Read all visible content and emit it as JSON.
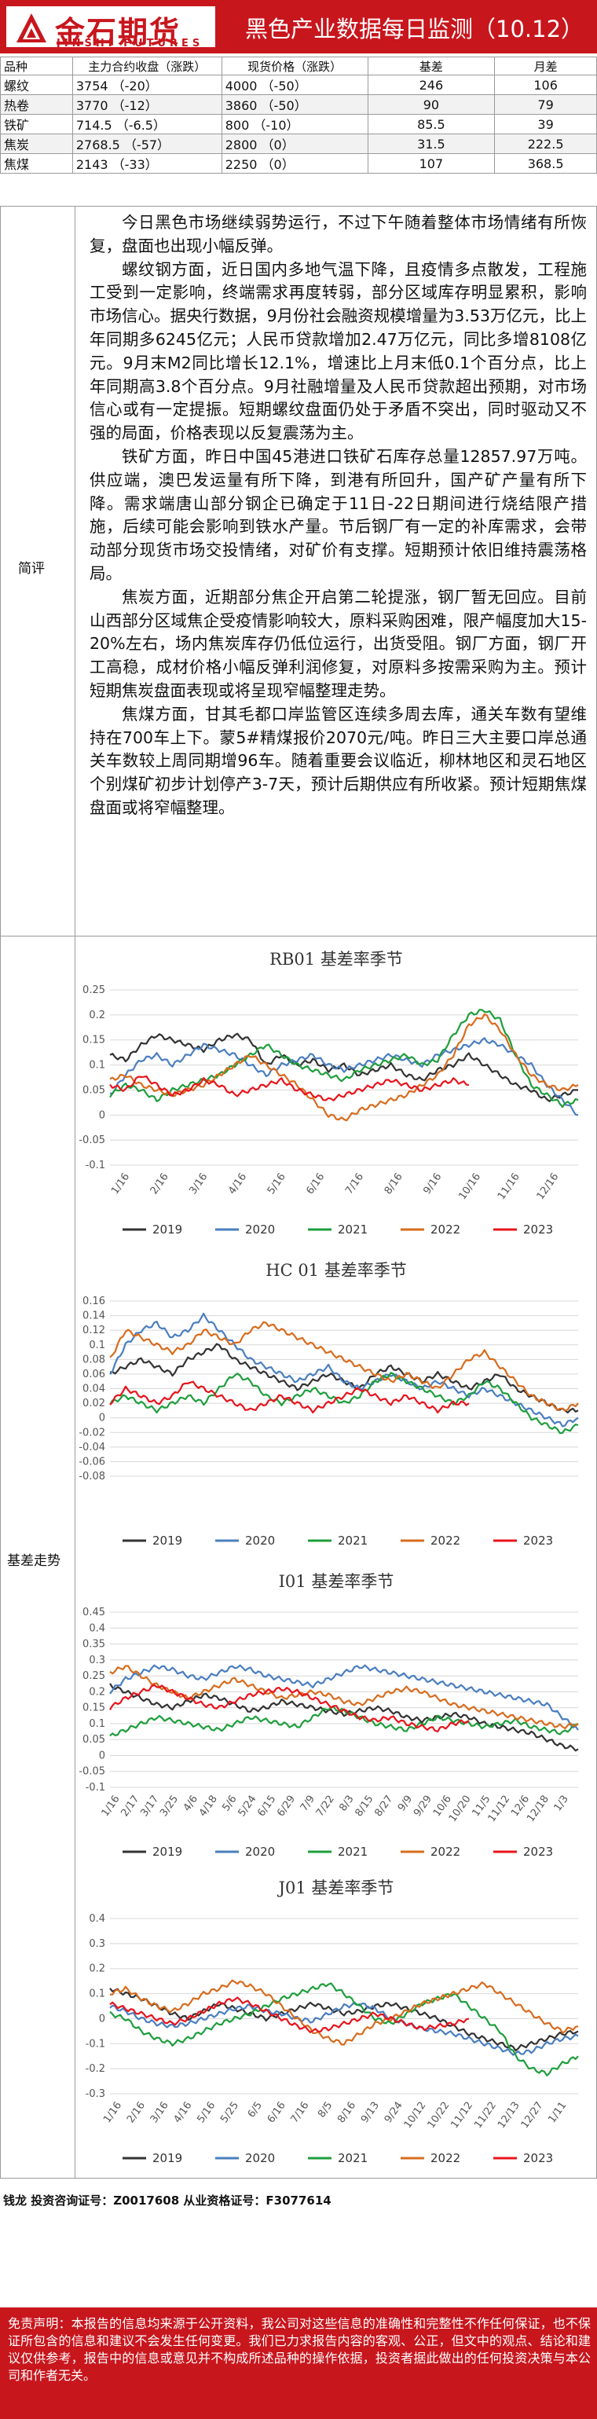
{
  "header": {
    "logo_cn": "金石期货",
    "logo_en": "JINSHI FUTURES",
    "title": "黑色产业数据每日监测（10.12）"
  },
  "table": {
    "columns": [
      "品种",
      "主力合约收盘（涨跌）",
      "现货价格（涨跌）",
      "基差",
      "月差"
    ],
    "rows": [
      {
        "name": "螺纹",
        "futures": "3754 （-20）",
        "spot": "4000 （-50）",
        "basis": "246",
        "spread": "106"
      },
      {
        "name": "热卷",
        "futures": "3770 （-12）",
        "spot": "3860 （-50）",
        "basis": "90",
        "spread": "79"
      },
      {
        "name": "铁矿",
        "futures": "714.5 （-6.5）",
        "spot": "800 （-10）",
        "basis": "85.5",
        "spread": "39"
      },
      {
        "name": "焦炭",
        "futures": "2768.5 （-57）",
        "spot": "2800 （0）",
        "basis": "31.5",
        "spread": "222.5"
      },
      {
        "name": "焦煤",
        "futures": "2143 （-33）",
        "spot": "2250 （0）",
        "basis": "107",
        "spread": "368.5"
      }
    ]
  },
  "comment": {
    "label": "简评",
    "paragraphs": [
      "今日黑色市场继续弱势运行，不过下午随着整体市场情绪有所恢复，盘面也出现小幅反弹。",
      "螺纹钢方面，近日国内多地气温下降，且疫情多点散发，工程施工受到一定影响，终端需求再度转弱，部分区域库存明显累积，影响市场信心。据央行数据，9月份社会融资规模增量为3.53万亿元，比上年同期多6245亿元；人民币贷款增加2.47万亿元，同比多增8108亿元。9月末M2同比增长12.1%，增速比上月末低0.1个百分点，比上年同期高3.8个百分点。9月社融增量及人民币贷款超出预期，对市场信心或有一定提振。短期螺纹盘面仍处于矛盾不突出，同时驱动又不强的局面，价格表现以反复震荡为主。",
      "铁矿方面，昨日中国45港进口铁矿石库存总量12857.97万吨。供应端，澳巴发运量有所下降，到港有所回升，国产矿产量有所下降。需求端唐山部分钢企已确定于11日-22日期间进行烧结限产措施，后续可能会影响到铁水产量。节后钢厂有一定的补库需求，会带动部分现货市场交投情绪，对矿价有支撑。短期预计依旧维持震荡格局。",
      "焦炭方面，近期部分焦企开启第二轮提涨，钢厂暂无回应。目前山西部分区域焦企受疫情影响较大，原料采购困难，限产幅度加大15-20%左右，场内焦炭库存仍低位运行，出货受阻。钢厂方面，钢厂开工高稳，成材价格小幅反弹利润修复，对原料多按需采购为主。预计短期焦炭盘面表现或将呈现窄幅整理走势。",
      "焦煤方面，甘其毛都口岸监管区连续多周去库，通关车数有望维持在700车上下。蒙5#精煤报价2070元/吨。昨日三大主要口岸总通关车数较上周同期增96车。随着重要会议临近，柳林地区和灵石地区个别煤矿初步计划停产3-7天，预计后期供应有所收紧。预计短期焦煤盘面或将窄幅整理。"
    ]
  },
  "basis": {
    "label": "基差走势",
    "colors": {
      "2019": "#333333",
      "2020": "#4a7ebf",
      "2021": "#1e9e3c",
      "2022": "#d76c1e",
      "2023": "#e8141c"
    }
  },
  "chart_data": [
    {
      "type": "line",
      "title": "RB01 基差率季节",
      "ylim": [
        -0.1,
        0.25
      ],
      "yticks": [
        "0.25",
        "0.2",
        "0.15",
        "0.1",
        "0.05",
        "0",
        "-0.05",
        "-0.1"
      ],
      "xticks": [
        "1/16",
        "2/16",
        "3/16",
        "4/16",
        "5/16",
        "6/16",
        "7/16",
        "8/16",
        "9/16",
        "10/16",
        "11/16",
        "12/16"
      ],
      "series": [
        {
          "name": "2019",
          "values": [
            0.12,
            0.11,
            0.14,
            0.16,
            0.15,
            0.14,
            0.13,
            0.15,
            0.16,
            0.15,
            0.1,
            0.12,
            0.1,
            0.11,
            0.09,
            0.1,
            0.08,
            0.09,
            0.1,
            0.08,
            0.07,
            0.09,
            0.1,
            0.12,
            0.1,
            0.08,
            0.06,
            0.05,
            0.03,
            0.04,
            0.05
          ]
        },
        {
          "name": "2020",
          "values": [
            0.04,
            0.08,
            0.11,
            0.12,
            0.1,
            0.12,
            0.14,
            0.13,
            0.12,
            0.1,
            0.08,
            0.1,
            0.11,
            0.12,
            0.1,
            0.09,
            0.1,
            0.11,
            0.12,
            0.11,
            0.1,
            0.12,
            0.13,
            0.14,
            0.15,
            0.14,
            0.12,
            0.1,
            0.06,
            0.03,
            0.0
          ]
        },
        {
          "name": "2021",
          "values": [
            0.04,
            0.06,
            0.05,
            0.03,
            0.05,
            0.06,
            0.07,
            0.08,
            0.1,
            0.12,
            0.14,
            0.12,
            0.1,
            0.09,
            0.08,
            0.07,
            0.09,
            0.1,
            0.11,
            0.12,
            0.1,
            0.11,
            0.16,
            0.2,
            0.21,
            0.19,
            0.12,
            0.06,
            0.04,
            0.02,
            0.03
          ]
        },
        {
          "name": "2022",
          "values": [
            0.07,
            0.08,
            0.06,
            0.05,
            0.04,
            0.05,
            0.06,
            0.08,
            0.1,
            0.12,
            0.1,
            0.08,
            0.06,
            0.03,
            0.0,
            -0.01,
            0.01,
            0.02,
            0.03,
            0.04,
            0.06,
            0.08,
            0.12,
            0.18,
            0.2,
            0.17,
            0.12,
            0.08,
            0.06,
            0.05,
            0.06
          ]
        },
        {
          "name": "2023",
          "values": [
            0.06,
            0.05,
            0.08,
            0.06,
            0.04,
            0.05,
            0.07,
            0.06,
            0.04,
            0.05,
            0.06,
            0.07,
            0.05,
            0.04,
            0.03,
            0.04,
            0.05,
            0.06,
            0.07,
            0.06,
            0.05,
            0.06,
            0.07,
            0.06
          ]
        }
      ]
    },
    {
      "type": "line",
      "title": "HC 01 基差率季节",
      "ylim": [
        -0.08,
        0.16
      ],
      "yticks": [
        "0.16",
        "0.14",
        "0.12",
        "0.1",
        "0.08",
        "0.06",
        "0.04",
        "0.02",
        "0",
        "-0.02",
        "-0.04",
        "-0.06",
        "-0.08"
      ],
      "xticks": [],
      "series": [
        {
          "name": "2019",
          "values": [
            0.06,
            0.07,
            0.08,
            0.07,
            0.06,
            0.08,
            0.09,
            0.1,
            0.08,
            0.07,
            0.06,
            0.05,
            0.04,
            0.05,
            0.06,
            0.05,
            0.04,
            0.06,
            0.07,
            0.06,
            0.05,
            0.06,
            0.05,
            0.04,
            0.05,
            0.06,
            0.04,
            0.03,
            0.02,
            0.01,
            0.01
          ]
        },
        {
          "name": "2020",
          "values": [
            0.06,
            0.1,
            0.12,
            0.13,
            0.11,
            0.12,
            0.14,
            0.12,
            0.1,
            0.08,
            0.07,
            0.06,
            0.05,
            0.06,
            0.07,
            0.05,
            0.04,
            0.05,
            0.06,
            0.05,
            0.04,
            0.05,
            0.04,
            0.03,
            0.04,
            0.03,
            0.02,
            0.01,
            0.0,
            -0.01,
            0.0
          ]
        },
        {
          "name": "2021",
          "values": [
            0.02,
            0.03,
            0.02,
            0.01,
            0.02,
            0.03,
            0.02,
            0.04,
            0.06,
            0.05,
            0.03,
            0.02,
            0.03,
            0.04,
            0.03,
            0.02,
            0.03,
            0.05,
            0.06,
            0.05,
            0.04,
            0.03,
            0.02,
            0.03,
            0.05,
            0.04,
            0.02,
            0.0,
            -0.01,
            -0.02,
            -0.01
          ]
        },
        {
          "name": "2022",
          "values": [
            0.08,
            0.12,
            0.11,
            0.1,
            0.09,
            0.1,
            0.12,
            0.11,
            0.1,
            0.12,
            0.13,
            0.12,
            0.11,
            0.1,
            0.09,
            0.08,
            0.07,
            0.06,
            0.05,
            0.06,
            0.05,
            0.04,
            0.06,
            0.08,
            0.09,
            0.07,
            0.05,
            0.03,
            0.02,
            0.01,
            0.02
          ]
        },
        {
          "name": "2023",
          "values": [
            0.02,
            0.04,
            0.03,
            0.02,
            0.03,
            0.05,
            0.04,
            0.03,
            0.02,
            0.01,
            0.02,
            0.03,
            0.02,
            0.01,
            0.02,
            0.03,
            0.04,
            0.03,
            0.02,
            0.03,
            0.02,
            0.01,
            0.02,
            0.02
          ]
        }
      ]
    },
    {
      "type": "line",
      "title": "I01 基差率季节",
      "ylim": [
        -0.1,
        0.45
      ],
      "yticks": [
        "0.45",
        "0.4",
        "0.35",
        "0.3",
        "0.25",
        "0.2",
        "0.15",
        "0.1",
        "0.05",
        "0",
        "-0.05",
        "-0.1"
      ],
      "xticks": [
        "1/16",
        "2/17",
        "3/17",
        "3/25",
        "4/6",
        "4/18",
        "5/6",
        "5/24",
        "6/15",
        "6/29",
        "7/9",
        "7/22",
        "8/3",
        "8/15",
        "8/27",
        "9/9",
        "9/29",
        "10/6",
        "10/20",
        "11/5",
        "11/12",
        "12/6",
        "12/18",
        "1/3"
      ],
      "series": [
        {
          "name": "2019",
          "values": [
            0.22,
            0.2,
            0.18,
            0.16,
            0.15,
            0.17,
            0.19,
            0.18,
            0.16,
            0.14,
            0.15,
            0.17,
            0.16,
            0.15,
            0.14,
            0.13,
            0.14,
            0.15,
            0.14,
            0.12,
            0.11,
            0.12,
            0.13,
            0.12,
            0.1,
            0.09,
            0.08,
            0.07,
            0.05,
            0.03,
            0.02
          ]
        },
        {
          "name": "2020",
          "values": [
            0.2,
            0.24,
            0.26,
            0.28,
            0.27,
            0.25,
            0.24,
            0.26,
            0.28,
            0.27,
            0.25,
            0.24,
            0.23,
            0.22,
            0.24,
            0.26,
            0.28,
            0.27,
            0.26,
            0.25,
            0.24,
            0.23,
            0.22,
            0.21,
            0.2,
            0.19,
            0.18,
            0.17,
            0.16,
            0.12,
            0.08
          ]
        },
        {
          "name": "2021",
          "values": [
            0.06,
            0.08,
            0.1,
            0.12,
            0.11,
            0.1,
            0.09,
            0.08,
            0.1,
            0.12,
            0.11,
            0.1,
            0.09,
            0.12,
            0.15,
            0.14,
            0.12,
            0.1,
            0.09,
            0.08,
            0.1,
            0.12,
            0.11,
            0.1,
            0.09,
            0.1,
            0.11,
            0.09,
            0.08,
            0.07,
            0.1
          ]
        },
        {
          "name": "2022",
          "values": [
            0.26,
            0.28,
            0.25,
            0.22,
            0.2,
            0.18,
            0.2,
            0.22,
            0.24,
            0.22,
            0.2,
            0.18,
            0.19,
            0.2,
            0.19,
            0.17,
            0.16,
            0.18,
            0.2,
            0.21,
            0.2,
            0.18,
            0.16,
            0.15,
            0.14,
            0.13,
            0.12,
            0.11,
            0.1,
            0.09,
            0.1
          ]
        },
        {
          "name": "2023",
          "values": [
            0.15,
            0.18,
            0.2,
            0.22,
            0.2,
            0.18,
            0.16,
            0.15,
            0.17,
            0.19,
            0.2,
            0.21,
            0.2,
            0.18,
            0.16,
            0.14,
            0.12,
            0.11,
            0.12,
            0.1,
            0.09,
            0.08,
            0.1,
            0.11
          ]
        }
      ]
    },
    {
      "type": "line",
      "title": "J01 基差率季节",
      "ylim": [
        -0.3,
        0.4
      ],
      "yticks": [
        "0.4",
        "0.3",
        "0.2",
        "0.1",
        "0",
        "-0.1",
        "-0.2",
        "-0.3"
      ],
      "xticks": [
        "1/16",
        "2/16",
        "3/16",
        "4/16",
        "5/16",
        "5/25",
        "6/5",
        "6/16",
        "7/16",
        "8/5",
        "8/16",
        "9/13",
        "9/24",
        "10/12",
        "10/22",
        "11/12",
        "11/22",
        "12/13",
        "12/27",
        "1/11"
      ],
      "series": [
        {
          "name": "2019",
          "values": [
            0.12,
            0.1,
            0.08,
            0.05,
            0.02,
            0.0,
            0.03,
            0.06,
            0.04,
            0.02,
            0.0,
            0.02,
            0.04,
            0.06,
            0.04,
            0.02,
            0.03,
            0.05,
            0.06,
            0.04,
            0.02,
            0.0,
            -0.03,
            -0.06,
            -0.08,
            -0.1,
            -0.12,
            -0.1,
            -0.08,
            -0.06,
            -0.05
          ]
        },
        {
          "name": "2020",
          "values": [
            0.05,
            0.03,
            0.0,
            -0.02,
            -0.03,
            -0.02,
            0.0,
            0.02,
            0.04,
            0.05,
            0.03,
            0.02,
            0.0,
            -0.01,
            0.02,
            0.05,
            0.06,
            0.04,
            0.0,
            -0.02,
            -0.04,
            -0.05,
            -0.06,
            -0.08,
            -0.1,
            -0.12,
            -0.14,
            -0.13,
            -0.1,
            -0.08,
            -0.07
          ]
        },
        {
          "name": "2021",
          "values": [
            0.02,
            0.0,
            -0.05,
            -0.08,
            -0.1,
            -0.08,
            -0.05,
            -0.02,
            0.0,
            0.02,
            0.05,
            0.08,
            0.1,
            0.12,
            0.14,
            0.1,
            0.05,
            0.0,
            -0.02,
            0.02,
            0.06,
            0.08,
            0.1,
            0.05,
            0.0,
            -0.05,
            -0.15,
            -0.2,
            -0.22,
            -0.18,
            -0.15
          ]
        },
        {
          "name": "2022",
          "values": [
            0.1,
            0.12,
            0.08,
            0.05,
            0.03,
            0.06,
            0.1,
            0.12,
            0.15,
            0.13,
            0.1,
            0.05,
            0.0,
            -0.05,
            -0.08,
            -0.1,
            -0.06,
            -0.02,
            0.0,
            0.03,
            0.06,
            0.08,
            0.1,
            0.12,
            0.14,
            0.1,
            0.06,
            0.02,
            -0.02,
            -0.05,
            -0.03
          ]
        },
        {
          "name": "2023",
          "values": [
            0.06,
            0.04,
            0.02,
            0.0,
            -0.02,
            0.0,
            0.03,
            0.06,
            0.08,
            0.06,
            0.03,
            0.0,
            -0.03,
            -0.05,
            -0.04,
            -0.02,
            0.0,
            0.02,
            0.0,
            -0.02,
            -0.04,
            -0.03,
            -0.02,
            0.0
          ]
        }
      ]
    }
  ],
  "footer": {
    "contact": "钱龙 投资咨询证号：Z0017608 从业资格证号：F3077614",
    "disclaimer": "免责声明：本报告的信息均来源于公开资料，我公司对这些信息的准确性和完整性不作任何保证，也不保证所包含的信息和建议不会发生任何变更。我们已力求报告内容的客观、公正，但文中的观点、结论和建议仅供参考，报告中的信息或意见并不构成所述品种的操作依据，投资者据此做出的任何投资决策与本公司和作者无关。"
  }
}
